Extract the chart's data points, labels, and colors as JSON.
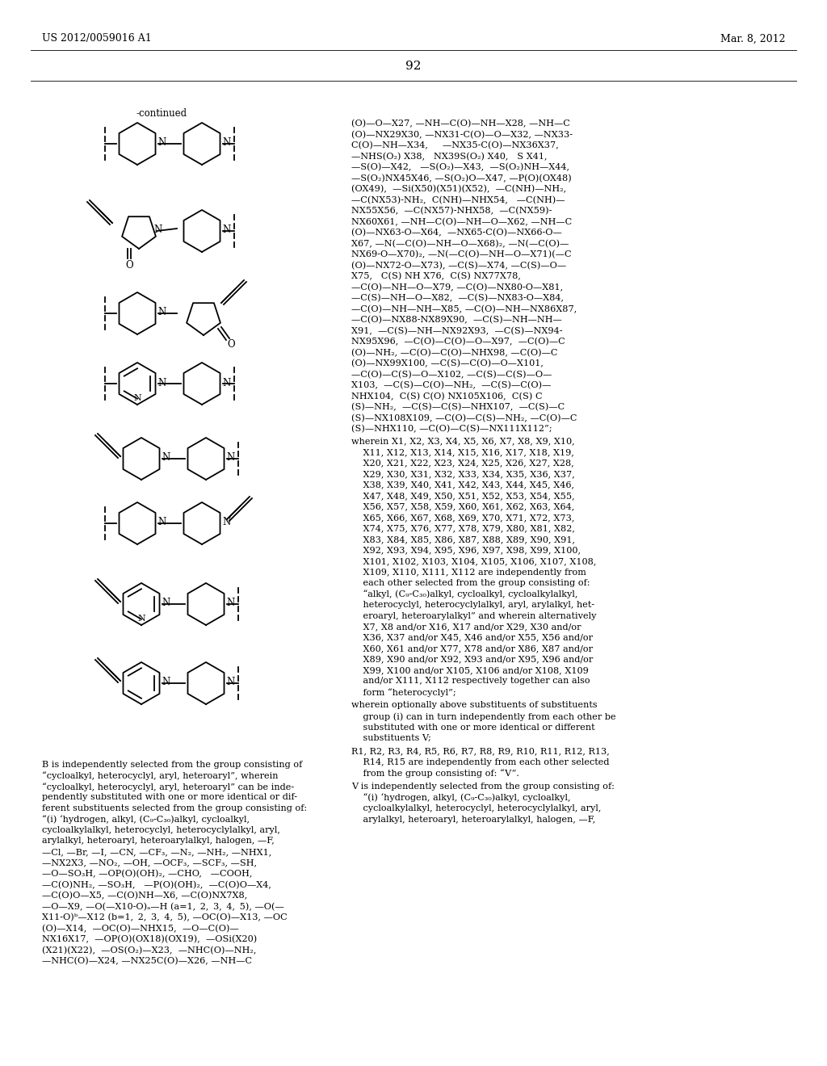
{
  "header_left": "US 2012/0059016 A1",
  "header_right": "Mar. 8, 2012",
  "page_number": "92",
  "bg_color": "#ffffff",
  "text_color": "#000000",
  "continued_label": "-continued"
}
